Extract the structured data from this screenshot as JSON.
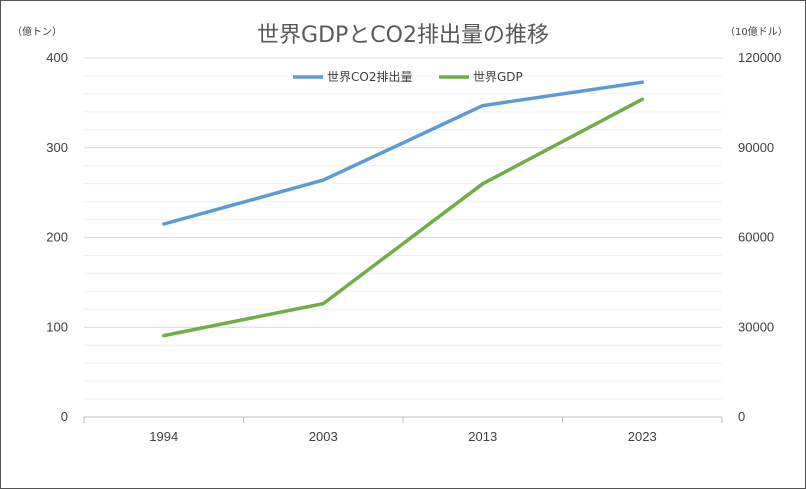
{
  "chart_data": {
    "type": "line",
    "title": "世界GDPとCO2排出量の推移",
    "xlabel": "",
    "ylabel": "（億トン）",
    "y2label": "（10億ドル）",
    "categories": [
      "1994",
      "2003",
      "2013",
      "2023"
    ],
    "ylim": [
      0,
      400
    ],
    "y2lim": [
      0,
      120000
    ],
    "yticks": [
      "0",
      "100",
      "200",
      "300",
      "400"
    ],
    "y2ticks": [
      "0",
      "30000",
      "60000",
      "90000",
      "120000"
    ],
    "grid": true,
    "legend_position": "top",
    "series": [
      {
        "name": "世界CO2排出量",
        "axis": "left",
        "color": "#5b9bd5",
        "values": [
          215,
          264,
          347,
          373
        ]
      },
      {
        "name": "世界GDP",
        "axis": "right",
        "color": "#70ad47",
        "values": [
          27200,
          37900,
          78000,
          106200
        ]
      }
    ]
  }
}
